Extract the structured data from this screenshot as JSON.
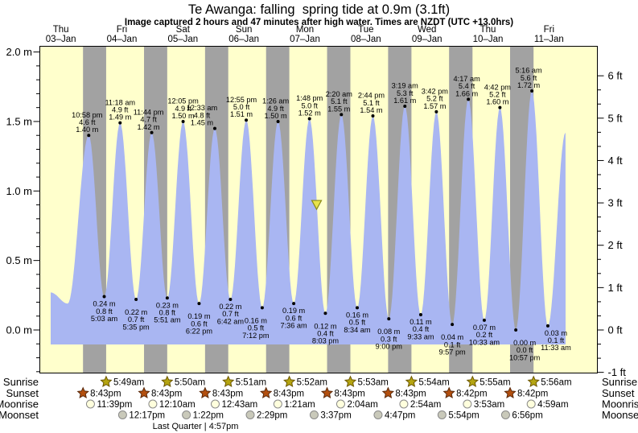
{
  "title": "Te Awanga: falling  spring tide at 0.9m (3.1ft)",
  "subtitle": "Image captured 2 hours and 47 minutes after high water. Times are NZDT (UTC +13.0hrs)",
  "days": [
    {
      "weekday": "Thu",
      "date": "03–Jan"
    },
    {
      "weekday": "Fri",
      "date": "04–Jan"
    },
    {
      "weekday": "Sat",
      "date": "05–Jan"
    },
    {
      "weekday": "Sun",
      "date": "06–Jan"
    },
    {
      "weekday": "Mon",
      "date": "07–Jan"
    },
    {
      "weekday": "Tue",
      "date": "08–Jan"
    },
    {
      "weekday": "Wed",
      "date": "09–Jan"
    },
    {
      "weekday": "Thu",
      "date": "10–Jan"
    },
    {
      "weekday": "Fri",
      "date": "11–Jan"
    }
  ],
  "axes": {
    "left_ticks": [
      "2.0 m",
      "1.5 m",
      "1.0 m",
      "0.5 m",
      "0.0 m"
    ],
    "right_ticks": [
      "6 ft",
      "5 ft",
      "4 ft",
      "3 ft",
      "2 ft",
      "1 ft",
      "0 ft",
      "-1 ft"
    ]
  },
  "chart_data": {
    "type": "area",
    "description": "Semidiurnal tide curve over 9 days, area filled below curve; day background pale yellow, night bands gray",
    "y_left_unit": "m",
    "y_right_unit": "ft",
    "y_left_range_m": [
      -0.3,
      2.04
    ],
    "y_right_range_ft": [
      -1,
      6
    ],
    "high_tides": [
      {
        "day": 0,
        "time": "10:58 pm",
        "height_ft": 4.6,
        "height_m": 1.4
      },
      {
        "day": 1,
        "time": "11:18 am",
        "height_ft": 4.9,
        "height_m": 1.49
      },
      {
        "day": 1,
        "time": "11:44 pm",
        "height_ft": 4.7,
        "height_m": 1.42
      },
      {
        "day": 2,
        "time": "12:05 pm",
        "height_ft": 4.9,
        "height_m": 1.5
      },
      {
        "day": 3,
        "time": "12:33 am",
        "height_ft": 4.8,
        "height_m": 1.45
      },
      {
        "day": 3,
        "time": "12:55 pm",
        "height_ft": 5.0,
        "height_m": 1.51
      },
      {
        "day": 4,
        "time": "1:26 am",
        "height_ft": 4.9,
        "height_m": 1.5
      },
      {
        "day": 4,
        "time": "1:48 pm",
        "height_ft": 5.0,
        "height_m": 1.52
      },
      {
        "day": 5,
        "time": "2:20 am",
        "height_ft": 5.1,
        "height_m": 1.55
      },
      {
        "day": 5,
        "time": "2:44 pm",
        "height_ft": 5.1,
        "height_m": 1.54
      },
      {
        "day": 6,
        "time": "3:19 am",
        "height_ft": 5.3,
        "height_m": 1.61
      },
      {
        "day": 6,
        "time": "3:42 pm",
        "height_ft": 5.2,
        "height_m": 1.57
      },
      {
        "day": 7,
        "time": "4:17 am",
        "height_ft": 5.4,
        "height_m": 1.66
      },
      {
        "day": 7,
        "time": "4:42 pm",
        "height_ft": 5.2,
        "height_m": 1.6
      },
      {
        "day": 8,
        "time": "5:16 am",
        "height_ft": 5.6,
        "height_m": 1.72
      }
    ],
    "low_tides": [
      {
        "day": 1,
        "time": "5:03 am",
        "height_m": 0.24,
        "height_ft": 0.8
      },
      {
        "day": 1,
        "time": "5:35 pm",
        "height_m": 0.22,
        "height_ft": 0.7
      },
      {
        "day": 2,
        "time": "5:51 am",
        "height_m": 0.23,
        "height_ft": 0.8
      },
      {
        "day": 2,
        "time": "6:22 pm",
        "height_m": 0.19,
        "height_ft": 0.6
      },
      {
        "day": 3,
        "time": "6:42 am",
        "height_m": 0.22,
        "height_ft": 0.7
      },
      {
        "day": 3,
        "time": "7:12 pm",
        "height_m": 0.16,
        "height_ft": 0.5
      },
      {
        "day": 4,
        "time": "7:36 am",
        "height_m": 0.19,
        "height_ft": 0.6
      },
      {
        "day": 4,
        "time": "8:03 pm",
        "height_m": 0.12,
        "height_ft": 0.4
      },
      {
        "day": 5,
        "time": "8:34 am",
        "height_m": 0.16,
        "height_ft": 0.5
      },
      {
        "day": 5,
        "time": "9:00 pm",
        "height_m": 0.08,
        "height_ft": 0.3
      },
      {
        "day": 6,
        "time": "9:33 am",
        "height_m": 0.11,
        "height_ft": 0.4
      },
      {
        "day": 6,
        "time": "9:57 pm",
        "height_m": 0.04,
        "height_ft": 0.1
      },
      {
        "day": 7,
        "time": "10:33 am",
        "height_m": 0.07,
        "height_ft": 0.2
      },
      {
        "day": 7,
        "time": "10:57 pm",
        "height_m": 0.0,
        "height_ft": 0.0
      },
      {
        "day": 8,
        "time": "11:33 am",
        "height_m": 0.03,
        "height_ft": 0.1
      }
    ],
    "current_time_marker": {
      "day": 4,
      "hour": 16.6,
      "height_m": 0.9
    }
  },
  "almanac": {
    "row_labels": [
      "Sunrise",
      "Sunset",
      "Moonrise",
      "Moonset"
    ],
    "sunrise": [
      [
        1,
        "5:49am"
      ],
      [
        2,
        "5:50am"
      ],
      [
        3,
        "5:51am"
      ],
      [
        4,
        "5:52am"
      ],
      [
        5,
        "5:53am"
      ],
      [
        6,
        "5:54am"
      ],
      [
        7,
        "5:55am"
      ],
      [
        8,
        "5:56am"
      ]
    ],
    "sunset": [
      [
        0,
        "8:43pm"
      ],
      [
        1,
        "8:43pm"
      ],
      [
        2,
        "8:43pm"
      ],
      [
        3,
        "8:43pm"
      ],
      [
        4,
        "8:43pm"
      ],
      [
        5,
        "8:43pm"
      ],
      [
        6,
        "8:42pm"
      ],
      [
        7,
        "8:42pm"
      ]
    ],
    "moonrise": [
      [
        0,
        "11:39pm"
      ],
      [
        2,
        "12:10am"
      ],
      [
        3,
        "12:43am"
      ],
      [
        4,
        "1:21am"
      ],
      [
        5,
        "2:04am"
      ],
      [
        6,
        "2:54am"
      ],
      [
        7,
        "3:53am"
      ],
      [
        8,
        "4:59am"
      ]
    ],
    "moonset": [
      [
        1,
        "12:17pm"
      ],
      [
        2,
        "1:22pm"
      ],
      [
        3,
        "2:29pm"
      ],
      [
        4,
        "3:37pm"
      ],
      [
        5,
        "4:47pm"
      ],
      [
        6,
        "5:54pm"
      ],
      [
        7,
        "6:56pm"
      ]
    ],
    "moon_phase": "Last Quarter | 4:57pm"
  },
  "colors": {
    "day_bg": "#ffffcc",
    "night_band": "#a2a2a2",
    "tide_fill": "#a9b6f2",
    "date_red": "#ef3b3b",
    "marker_fill": "#e8e34a",
    "marker_stroke": "#8a8a1a",
    "sunrise_star": "#b5a511",
    "sunrise_star_stroke": "#6a5500",
    "sunset_star": "#b34f0e",
    "sunset_star_stroke": "#58280a",
    "moonrise_circle": "#ffffdd",
    "moonset_circle": "#c9c9ba",
    "circle_stroke": "#8a8a8a"
  }
}
